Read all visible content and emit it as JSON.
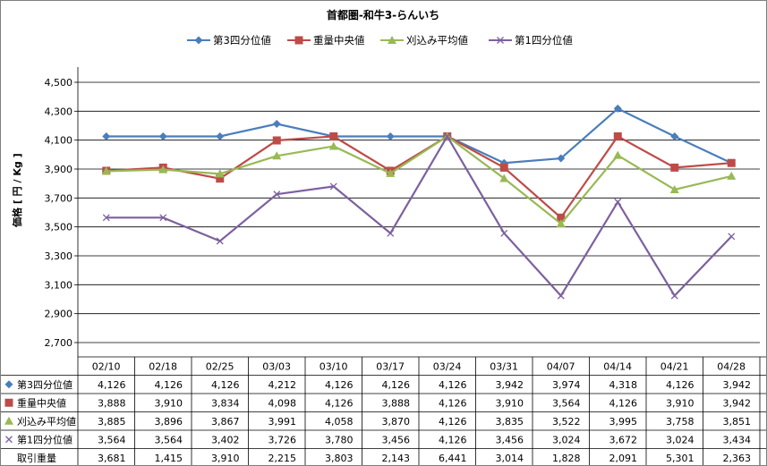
{
  "chart_data": {
    "type": "line",
    "title": "首都圏-和牛3-らんいち",
    "ylabel": "価格 [ 円 / Kg ]",
    "ylim": [
      2700,
      4500
    ],
    "yticks": [
      "2,700",
      "2,900",
      "3,100",
      "3,300",
      "3,500",
      "3,700",
      "3,900",
      "4,100",
      "4,300",
      "4,500"
    ],
    "ytick_values": [
      2700,
      2900,
      3100,
      3300,
      3500,
      3700,
      3900,
      4100,
      4300,
      4500
    ],
    "grid": true,
    "legend_position": "top",
    "categories": [
      "02/10",
      "02/18",
      "02/25",
      "03/03",
      "03/10",
      "03/17",
      "03/24",
      "03/31",
      "04/07",
      "04/14",
      "04/21",
      "04/28"
    ],
    "series": [
      {
        "name": "第3四分位値",
        "color": "#4a7ebb",
        "marker": "diamond",
        "values": [
          4126,
          4126,
          4126,
          4212,
          4126,
          4126,
          4126,
          3942,
          3974,
          4318,
          4126,
          3942
        ],
        "labels": [
          "4,126",
          "4,126",
          "4,126",
          "4,212",
          "4,126",
          "4,126",
          "4,126",
          "3,942",
          "3,974",
          "4,318",
          "4,126",
          "3,942"
        ]
      },
      {
        "name": "重量中央値",
        "color": "#be4b48",
        "marker": "square",
        "values": [
          3888,
          3910,
          3834,
          4098,
          4126,
          3888,
          4126,
          3910,
          3564,
          4126,
          3910,
          3942
        ],
        "labels": [
          "3,888",
          "3,910",
          "3,834",
          "4,098",
          "4,126",
          "3,888",
          "4,126",
          "3,910",
          "3,564",
          "4,126",
          "3,910",
          "3,942"
        ]
      },
      {
        "name": "刈込み平均値",
        "color": "#98b954",
        "marker": "triangle",
        "values": [
          3885,
          3896,
          3867,
          3991,
          4058,
          3870,
          4126,
          3835,
          3522,
          3995,
          3758,
          3851
        ],
        "labels": [
          "3,885",
          "3,896",
          "3,867",
          "3,991",
          "4,058",
          "3,870",
          "4,126",
          "3,835",
          "3,522",
          "3,995",
          "3,758",
          "3,851"
        ]
      },
      {
        "name": "第1四分位値",
        "color": "#7d60a0",
        "marker": "x",
        "values": [
          3564,
          3564,
          3402,
          3726,
          3780,
          3456,
          4126,
          3456,
          3024,
          3672,
          3024,
          3434
        ],
        "labels": [
          "3,564",
          "3,564",
          "3,402",
          "3,726",
          "3,780",
          "3,456",
          "4,126",
          "3,456",
          "3,024",
          "3,672",
          "3,024",
          "3,434"
        ]
      }
    ],
    "table_extra_row": {
      "name": "取引重量",
      "labels": [
        "3,681",
        "1,415",
        "3,910",
        "2,215",
        "3,803",
        "2,143",
        "6,441",
        "3,014",
        "1,828",
        "2,091",
        "5,301",
        "2,363"
      ]
    }
  }
}
